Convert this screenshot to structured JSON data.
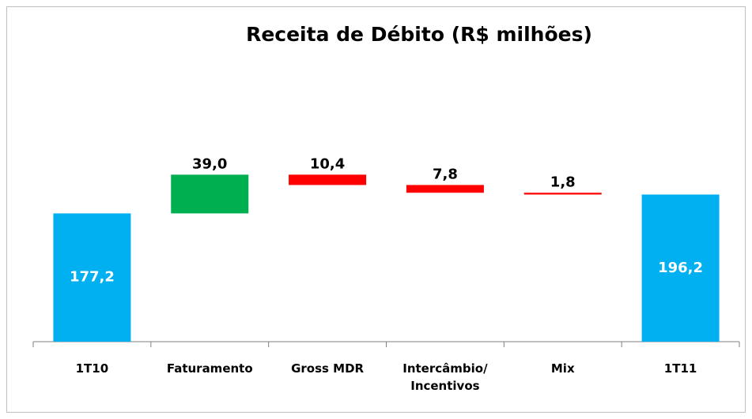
{
  "chart_data": {
    "type": "waterfall",
    "title": "Receita de Débito (R$ milhões)",
    "categories": [
      "1T10",
      "Faturamento",
      "Gross MDR",
      "Intercâmbio/ Incentivos",
      "Mix",
      "1T11"
    ],
    "values": [
      177.2,
      39.0,
      -10.4,
      -7.8,
      -1.8,
      196.2
    ],
    "value_labels": [
      "177,2",
      "39,0",
      "10,4",
      "7,8",
      "1,8",
      "196,2"
    ],
    "colors": [
      "#00b0f0",
      "#00b050",
      "#ff0000",
      "#ff0000",
      "#ff0000",
      "#00b0f0"
    ],
    "ylim": [
      48,
      350
    ]
  }
}
